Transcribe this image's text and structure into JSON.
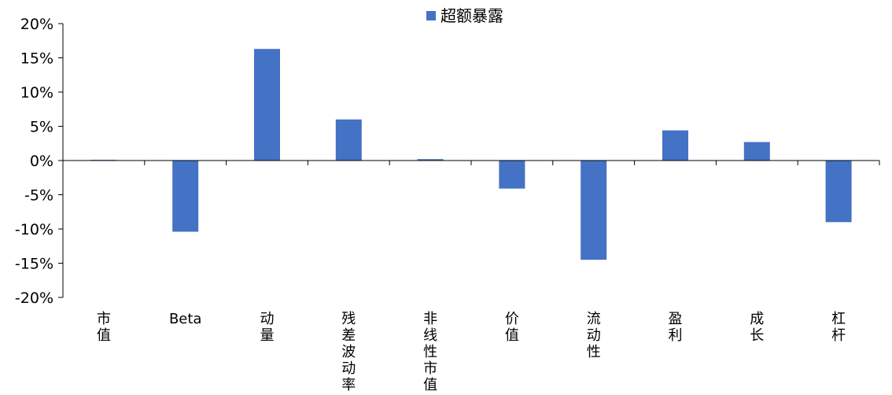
{
  "chart_data": {
    "type": "bar",
    "title": "",
    "xlabel": "",
    "ylabel": "",
    "ylim": [
      -0.2,
      0.2
    ],
    "yticks": [
      "20%",
      "15%",
      "10%",
      "5%",
      "0%",
      "-5%",
      "-10%",
      "-15%",
      "-20%"
    ],
    "categories": [
      "市值",
      "Beta",
      "动量",
      "残差波动率",
      "非线性市值",
      "价值",
      "流动性",
      "盈利",
      "成长",
      "杠杆"
    ],
    "series": [
      {
        "name": "超额暴露",
        "color": "#4472C4",
        "values": [
          0.001,
          -0.104,
          0.163,
          0.06,
          0.002,
          -0.041,
          -0.145,
          0.044,
          0.027,
          -0.09
        ]
      }
    ],
    "legend": {
      "position": "top-center"
    },
    "grid": false
  }
}
